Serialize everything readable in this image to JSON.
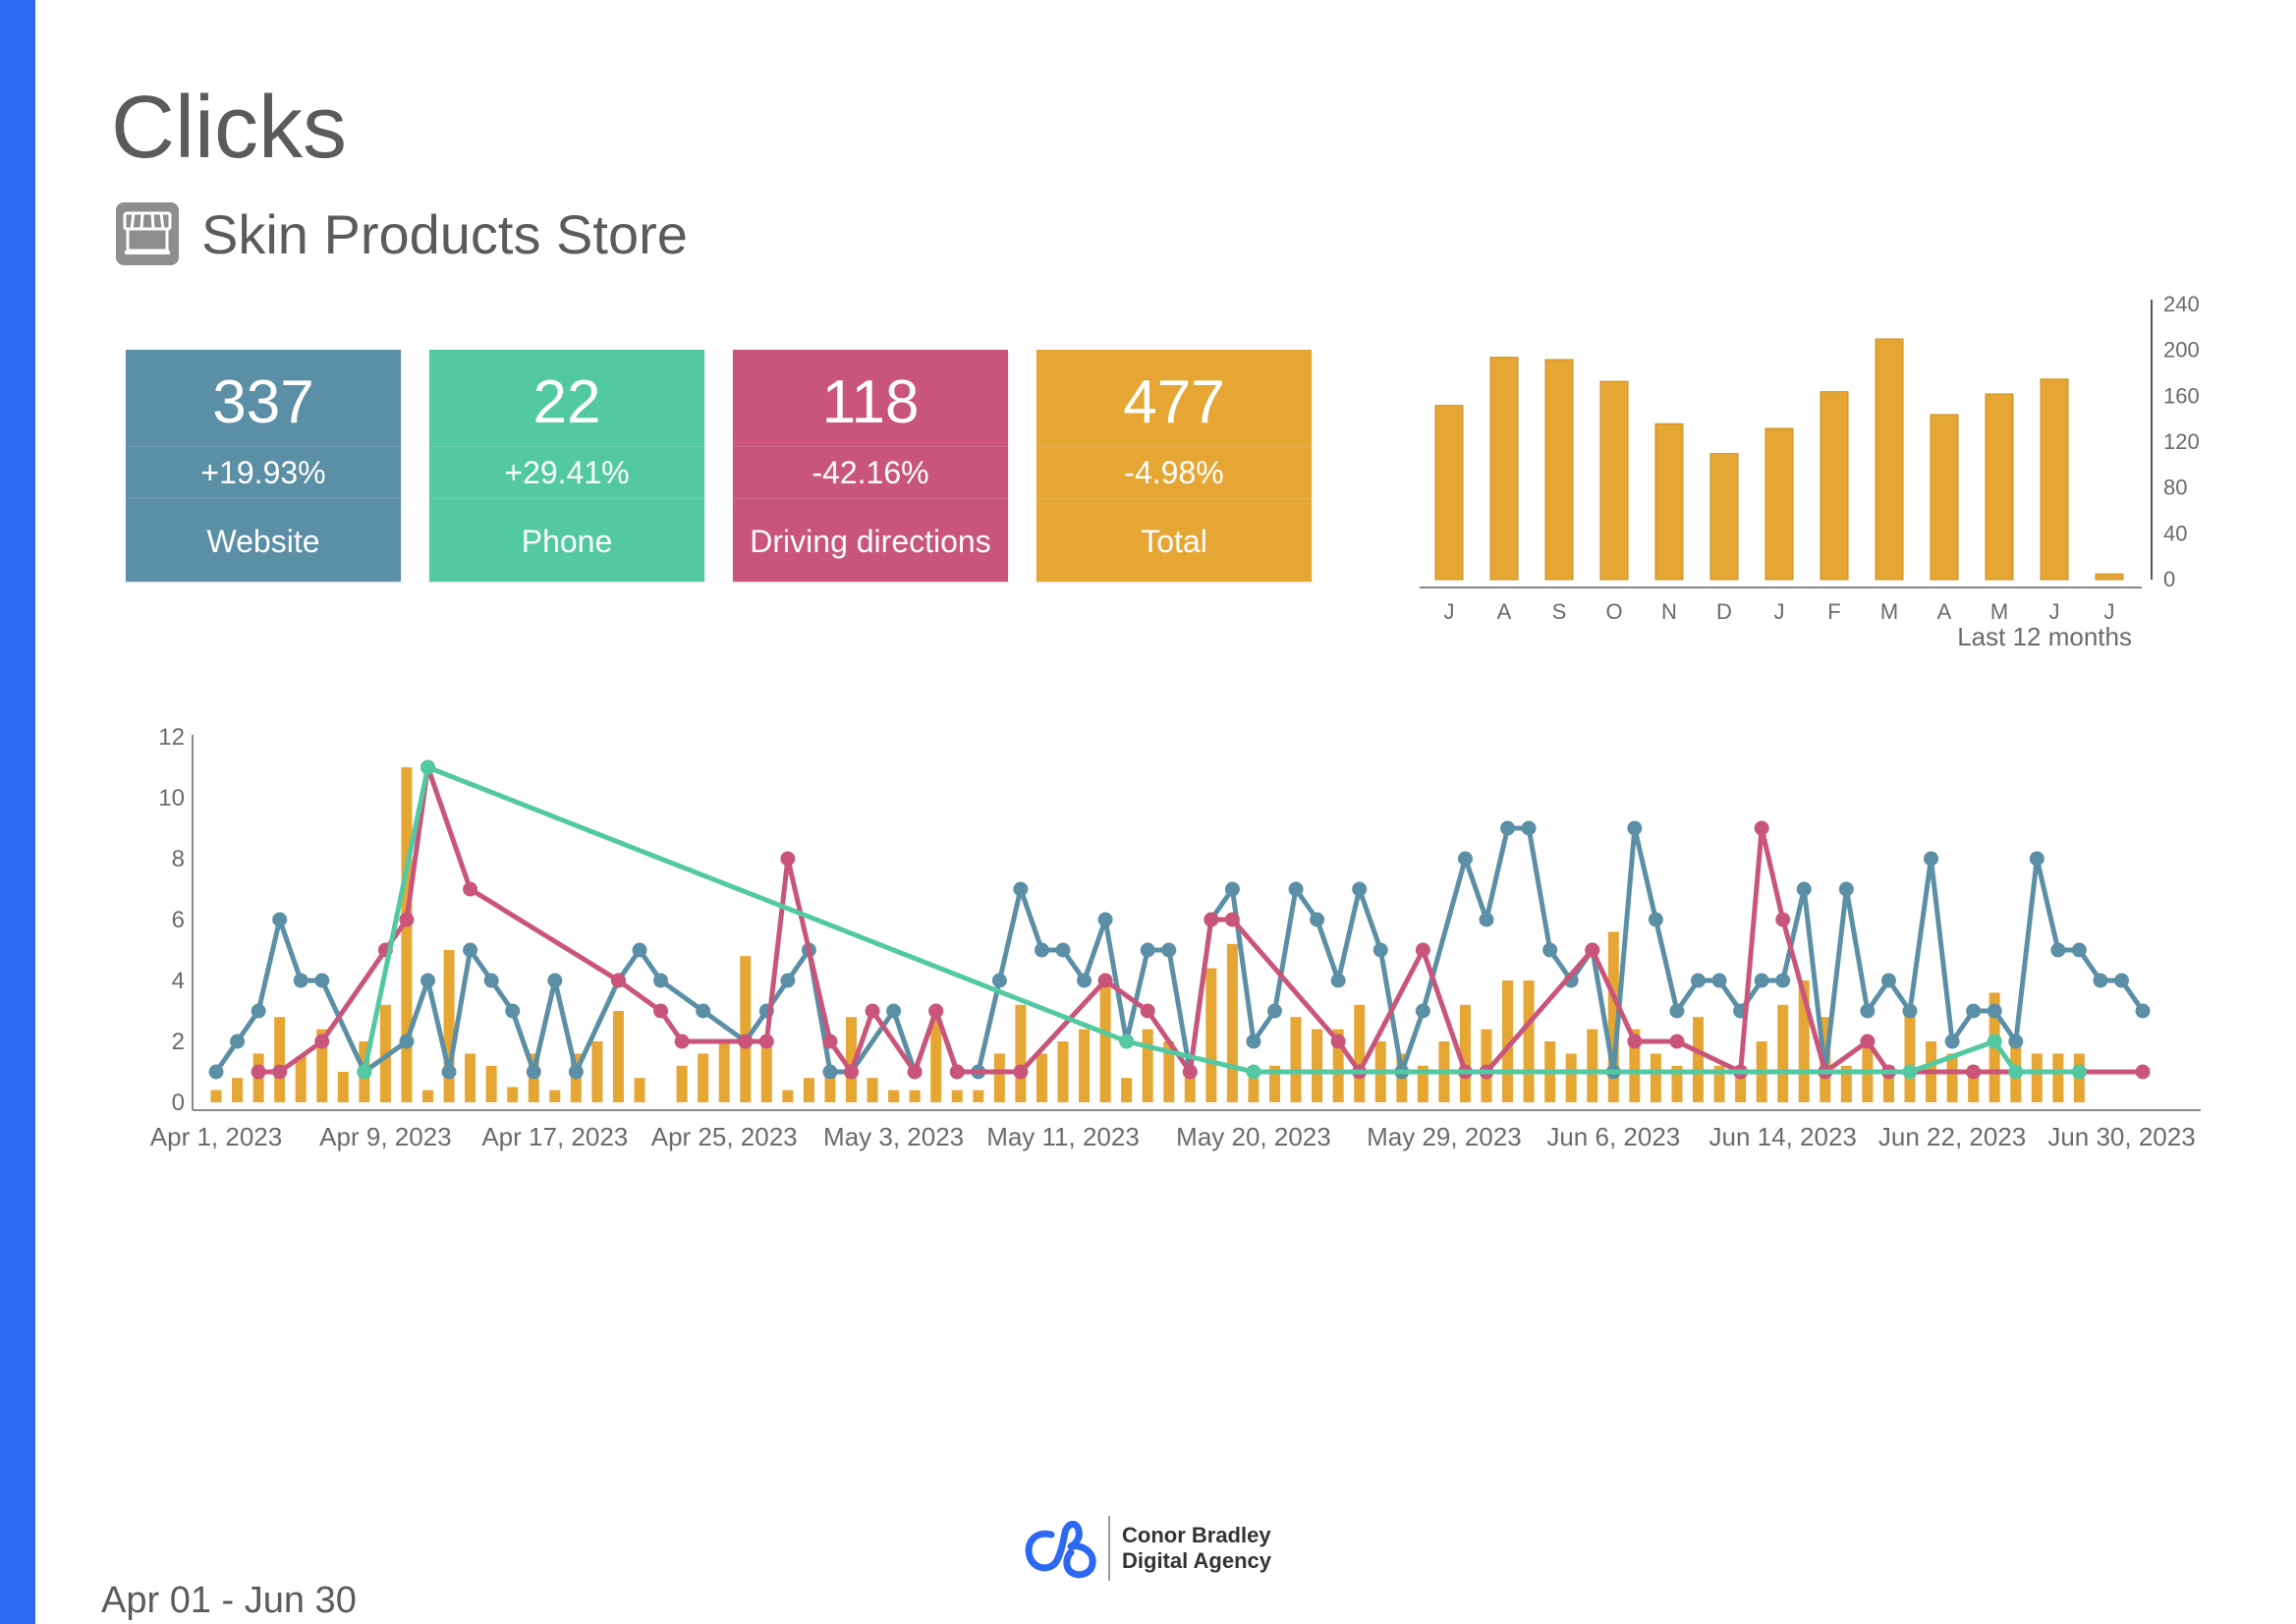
{
  "page": {
    "title": "Clicks",
    "store_name": "Skin Products Store",
    "date_range": "Apr 01 - Jun 30"
  },
  "brand": {
    "line1": "Conor Bradley",
    "line2": "Digital Agency",
    "color": "#2d68f2"
  },
  "kpis": [
    {
      "value": "337",
      "change": "+19.93%",
      "label": "Website",
      "color": "#5a8fa6"
    },
    {
      "value": "22",
      "change": "+29.41%",
      "label": "Phone",
      "color": "#52c9a0"
    },
    {
      "value": "118",
      "change": "-42.16%",
      "label": "Driving directions",
      "color": "#c9557a"
    },
    {
      "value": "477",
      "change": "-4.98%",
      "label": "Total",
      "color": "#e6a634"
    }
  ],
  "chart_data": [
    {
      "type": "bar",
      "categories": [
        "J",
        "A",
        "S",
        "O",
        "N",
        "D",
        "J",
        "F",
        "M",
        "A",
        "M",
        "J",
        "J"
      ],
      "values": [
        152,
        194,
        192,
        173,
        136,
        110,
        132,
        164,
        210,
        144,
        162,
        175,
        5
      ],
      "ylim": [
        0,
        240
      ],
      "yticks": [
        "240",
        "200",
        "160",
        "120",
        "80",
        "40",
        "0"
      ],
      "xlabel": "Last 12 months",
      "color": "#e6a634",
      "axis_side": "right"
    },
    {
      "type": "line",
      "ylim": [
        0,
        12
      ],
      "yticks": [
        "12",
        "10",
        "8",
        "6",
        "4",
        "2",
        "0"
      ],
      "x_tick_labels": [
        "Apr 1, 2023",
        "Apr 9, 2023",
        "Apr 17, 2023",
        "Apr 25, 2023",
        "May 3, 2023",
        "May 11, 2023",
        "May 20, 2023",
        "May 29, 2023",
        "Jun 6, 2023",
        "Jun 14, 2023",
        "Jun 22, 2023",
        "Jun 30, 2023"
      ],
      "bars": {
        "color": "#e6a634",
        "values": [
          0.4,
          0.8,
          1.6,
          2.8,
          1.5,
          2.4,
          1,
          2,
          3.2,
          11,
          0.4,
          5,
          1.6,
          1.2,
          0.5,
          1.6,
          0.4,
          1.6,
          2,
          3,
          0.8,
          0,
          1.2,
          1.6,
          2,
          4.8,
          2,
          0.4,
          0.8,
          1,
          2.8,
          0.8,
          0.4,
          0.4,
          2.8,
          0.4,
          0.4,
          1.6,
          3.2,
          1.6,
          2,
          2.4,
          4,
          0.8,
          2.4,
          2,
          1.2,
          4.4,
          5.2,
          0.8,
          1.2,
          2.8,
          2.4,
          2.4,
          3.2,
          2,
          1.6,
          1.2,
          2,
          3.2,
          2.4,
          4,
          4,
          2,
          1.6,
          2.4,
          5.6,
          2.4,
          1.6,
          1.2,
          2.8,
          1.2,
          1.2,
          2,
          3.2,
          4,
          2.8,
          1.2,
          2,
          1.2,
          3.2,
          2,
          1.6,
          1.2,
          3.6,
          2,
          1.6,
          1.6,
          1.6
        ]
      },
      "series": [
        {
          "color": "#5a8fa6",
          "points": [
            [
              0,
              1
            ],
            [
              1,
              2
            ],
            [
              2,
              3
            ],
            [
              3,
              6
            ],
            [
              4,
              4
            ],
            [
              5,
              4
            ],
            [
              7,
              1
            ],
            [
              9,
              2
            ],
            [
              10,
              4
            ],
            [
              11,
              1
            ],
            [
              12,
              5
            ],
            [
              13,
              4
            ],
            [
              14,
              3
            ],
            [
              15,
              1
            ],
            [
              16,
              4
            ],
            [
              17,
              1
            ],
            [
              19,
              4
            ],
            [
              20,
              5
            ],
            [
              21,
              4
            ],
            [
              23,
              3
            ],
            [
              25,
              2
            ],
            [
              26,
              3
            ],
            [
              27,
              4
            ],
            [
              28,
              5
            ],
            [
              29,
              1
            ],
            [
              30,
              1
            ],
            [
              32,
              3
            ],
            [
              33,
              1
            ],
            [
              34,
              3
            ],
            [
              35,
              1
            ],
            [
              36,
              1
            ],
            [
              37,
              4
            ],
            [
              38,
              7
            ],
            [
              39,
              5
            ],
            [
              40,
              5
            ],
            [
              41,
              4
            ],
            [
              42,
              6
            ],
            [
              43,
              2
            ],
            [
              44,
              5
            ],
            [
              45,
              5
            ],
            [
              46,
              1
            ],
            [
              47,
              6
            ],
            [
              48,
              7
            ],
            [
              49,
              2
            ],
            [
              50,
              3
            ],
            [
              51,
              7
            ],
            [
              52,
              6
            ],
            [
              53,
              4
            ],
            [
              54,
              7
            ],
            [
              55,
              5
            ],
            [
              56,
              1
            ],
            [
              57,
              3
            ],
            [
              59,
              8
            ],
            [
              60,
              6
            ],
            [
              61,
              9
            ],
            [
              62,
              9
            ],
            [
              63,
              5
            ],
            [
              64,
              4
            ],
            [
              65,
              5
            ],
            [
              66,
              1
            ],
            [
              67,
              9
            ],
            [
              68,
              6
            ],
            [
              69,
              3
            ],
            [
              70,
              4
            ],
            [
              71,
              4
            ],
            [
              72,
              3
            ],
            [
              73,
              4
            ],
            [
              74,
              4
            ],
            [
              75,
              7
            ],
            [
              76,
              1
            ],
            [
              77,
              7
            ],
            [
              78,
              3
            ],
            [
              79,
              4
            ],
            [
              80,
              3
            ],
            [
              81,
              8
            ],
            [
              82,
              2
            ],
            [
              83,
              3
            ],
            [
              84,
              3
            ],
            [
              85,
              2
            ],
            [
              86,
              8
            ],
            [
              87,
              5
            ],
            [
              88,
              5
            ],
            [
              89,
              4
            ],
            [
              90,
              4
            ],
            [
              91,
              3
            ]
          ]
        },
        {
          "color": "#c9557a",
          "points": [
            [
              2,
              1
            ],
            [
              3,
              1
            ],
            [
              5,
              2
            ],
            [
              8,
              5
            ],
            [
              9,
              6
            ],
            [
              10,
              11
            ],
            [
              12,
              7
            ],
            [
              19,
              4
            ],
            [
              21,
              3
            ],
            [
              22,
              2
            ],
            [
              25,
              2
            ],
            [
              26,
              2
            ],
            [
              27,
              8
            ],
            [
              29,
              2
            ],
            [
              30,
              1
            ],
            [
              31,
              3
            ],
            [
              33,
              1
            ],
            [
              34,
              3
            ],
            [
              35,
              1
            ],
            [
              38,
              1
            ],
            [
              42,
              4
            ],
            [
              44,
              3
            ],
            [
              46,
              1
            ],
            [
              47,
              6
            ],
            [
              48,
              6
            ],
            [
              53,
              2
            ],
            [
              54,
              1
            ],
            [
              57,
              5
            ],
            [
              59,
              1
            ],
            [
              60,
              1
            ],
            [
              65,
              5
            ],
            [
              67,
              2
            ],
            [
              69,
              2
            ],
            [
              72,
              1
            ],
            [
              73,
              9
            ],
            [
              74,
              6
            ],
            [
              76,
              1
            ],
            [
              78,
              2
            ],
            [
              79,
              1
            ],
            [
              83,
              1
            ],
            [
              88,
              1
            ],
            [
              91,
              1
            ]
          ]
        },
        {
          "color": "#52c9a0",
          "points": [
            [
              7,
              1
            ],
            [
              10,
              11
            ],
            [
              43,
              2
            ],
            [
              49,
              1
            ],
            [
              80,
              1
            ],
            [
              84,
              2
            ],
            [
              85,
              1
            ],
            [
              88,
              1
            ]
          ]
        }
      ]
    }
  ]
}
